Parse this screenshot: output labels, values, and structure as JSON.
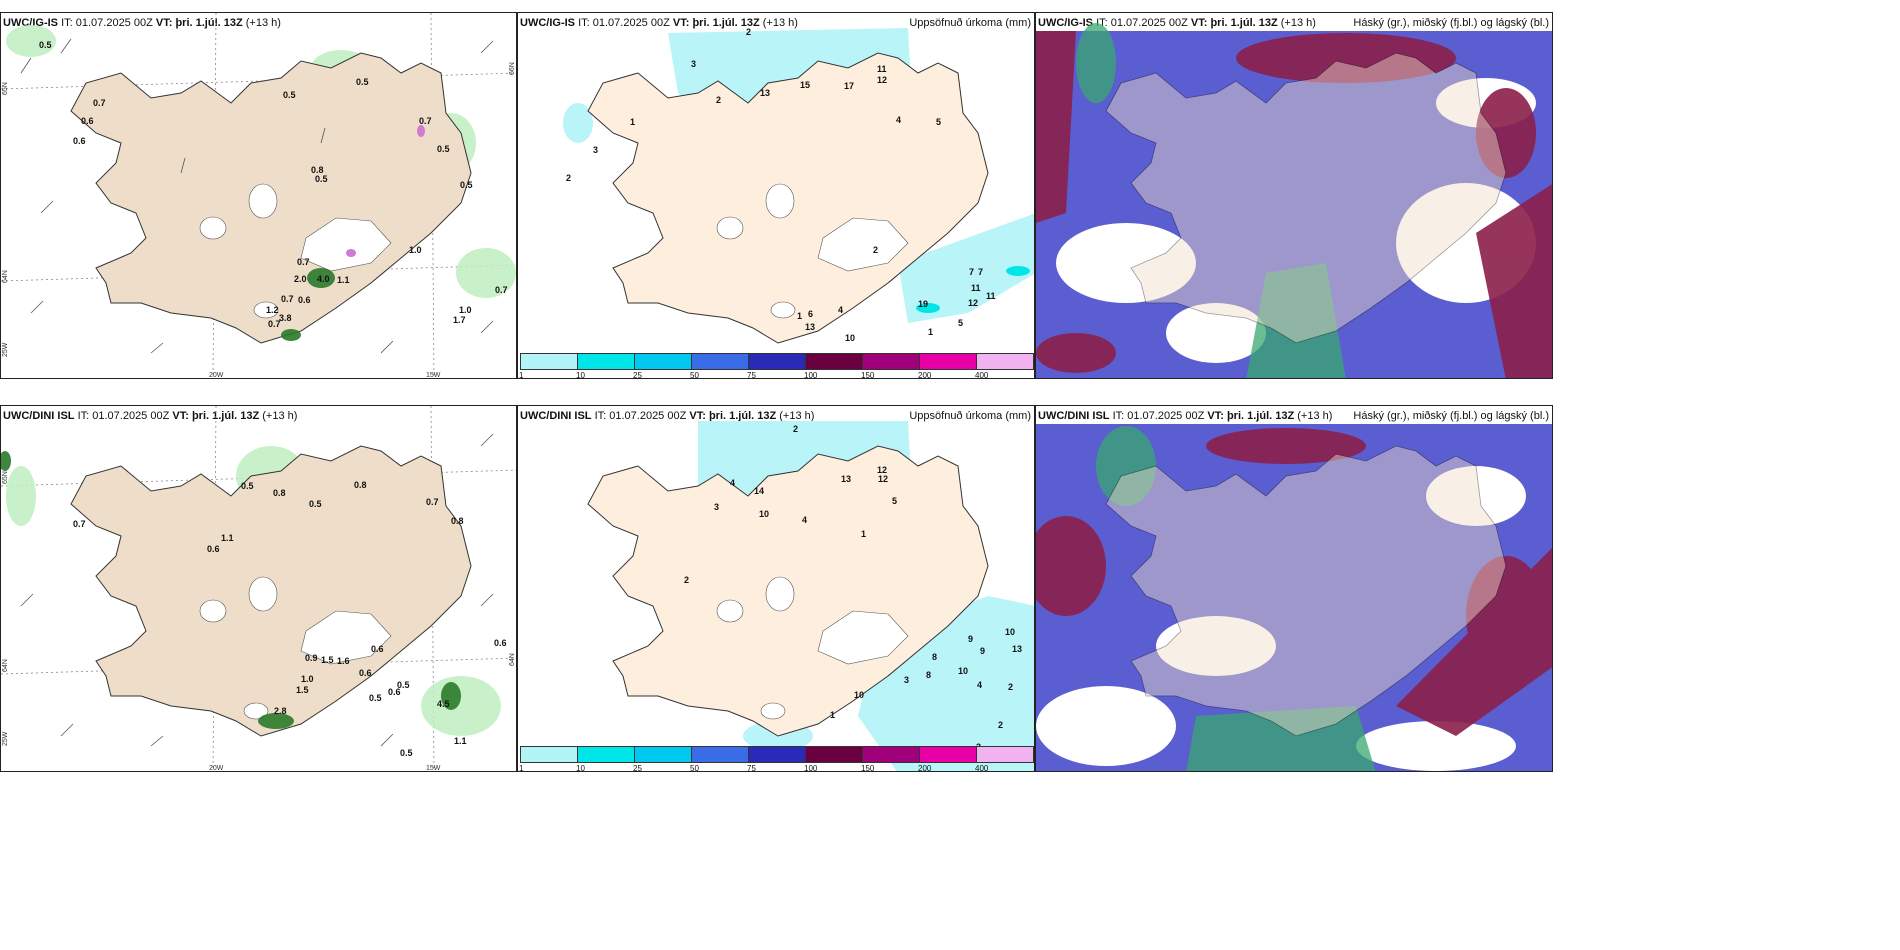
{
  "panels": [
    {
      "id": "p1",
      "model": "UWC/IG-IS",
      "it_label": "IT:",
      "it": "01.07.2025 00Z",
      "vt_label": "VT:",
      "vt": "þri. 1.júl. 13Z",
      "lead": "(+13 h)",
      "product": ""
    },
    {
      "id": "p2",
      "model": "UWC/IG-IS",
      "it_label": "IT:",
      "it": "01.07.2025 00Z",
      "vt_label": "VT:",
      "vt": "þri. 1.júl. 13Z",
      "lead": "(+13 h)",
      "product": "Uppsöfnuð úrkoma (mm)"
    },
    {
      "id": "p3",
      "model": "UWC/IG-IS",
      "it_label": "IT:",
      "it": "01.07.2025 00Z",
      "vt_label": "VT:",
      "vt": "þri. 1.júl. 13Z",
      "lead": "(+13 h)",
      "product": "Háský (gr.), miðský (fj.bl.) og lágský (bl.)"
    },
    {
      "id": "p4",
      "model": "UWC/DINI ISL",
      "it_label": "IT:",
      "it": "01.07.2025 00Z",
      "vt_label": "VT:",
      "vt": "þri. 1.júl. 13Z",
      "lead": "(+13 h)",
      "product": ""
    },
    {
      "id": "p5",
      "model": "UWC/DINI ISL",
      "it_label": "IT:",
      "it": "01.07.2025 00Z",
      "vt_label": "VT:",
      "vt": "þri. 1.júl. 13Z",
      "lead": "(+13 h)",
      "product": "Uppsöfnuð úrkoma (mm)"
    },
    {
      "id": "p6",
      "model": "UWC/DINI ISL",
      "it_label": "IT:",
      "it": "01.07.2025 00Z",
      "vt_label": "VT:",
      "vt": "þri. 1.júl. 13Z",
      "lead": "(+13 h)",
      "product": "Háský (gr.), miðský (fj.bl.) og lágský (bl.)"
    }
  ],
  "axis_labels": {
    "lon_20w": "20W",
    "lon_15w": "15W",
    "lat_65n": "65N",
    "lat_64n": "64N",
    "lon_25w": "25W",
    "lat_66n": "66N"
  },
  "colorbar": {
    "ticks": [
      "1",
      "10",
      "25",
      "50",
      "75",
      "100",
      "150",
      "200",
      "400"
    ],
    "colors": [
      "#b3f4f8",
      "#00e6e8",
      "#00c8ee",
      "#3a6ce8",
      "#2a2ab8",
      "#6a0040",
      "#a0007a",
      "#e800a6",
      "#f0b2f0"
    ]
  },
  "values": {
    "ig_wind": [
      "0.5",
      "0.7",
      "0.6",
      "0.6",
      "0.5",
      "0.5",
      "0.7",
      "0.5",
      "0.8",
      "0.5",
      "0.5",
      "1.0",
      "0.7",
      "2.0",
      "4.0",
      "1.1",
      "0.7",
      "0.6",
      "1.2",
      "3.8",
      "0.7",
      "1.0",
      "1.7",
      "0.7"
    ],
    "ig_precip": [
      "2",
      "3",
      "11",
      "12",
      "13",
      "15",
      "17",
      "4",
      "5",
      "2",
      "3",
      "1",
      "2",
      "7",
      "7",
      "11",
      "11",
      "19",
      "12",
      "5",
      "13",
      "6",
      "1",
      "10",
      "4",
      "1",
      "2"
    ],
    "dini_wind": [
      "0.5",
      "0.8",
      "0.5",
      "0.8",
      "0.7",
      "0.7",
      "0.6",
      "1.1",
      "0.8",
      "0.9",
      "1.5",
      "1.6",
      "0.6",
      "1.0",
      "1.5",
      "0.5",
      "0.6",
      "0.5",
      "0.6",
      "2.8",
      "4.5",
      "1.1",
      "0.5",
      "0.6"
    ],
    "dini_precip": [
      "2",
      "3",
      "14",
      "12",
      "10",
      "13",
      "12",
      "5",
      "4",
      "4",
      "2",
      "1",
      "9",
      "9",
      "10",
      "10",
      "13",
      "8",
      "3",
      "2",
      "2",
      "4",
      "8",
      "10",
      "2",
      "1"
    ]
  }
}
